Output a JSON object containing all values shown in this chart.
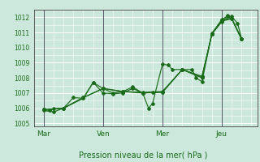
{
  "title": "",
  "xlabel": "Pression niveau de la mer( hPa )",
  "bg_color": "#cce8dc",
  "grid_color": "#ffffff",
  "line_color": "#1a6b1a",
  "marker_color": "#1a6b1a",
  "ylim": [
    1004.8,
    1012.5
  ],
  "yticks": [
    1005,
    1006,
    1007,
    1008,
    1009,
    1010,
    1011,
    1012
  ],
  "xtick_labels": [
    "Mar",
    "Ven",
    "Mer",
    "Jeu"
  ],
  "xtick_positions": [
    0,
    3,
    6,
    9
  ],
  "xlim": [
    -0.5,
    10.8
  ],
  "series": [
    [
      0.0,
      1005.9,
      0.3,
      1005.85,
      0.5,
      1005.95,
      1.0,
      1006.0,
      1.5,
      1006.7,
      2.0,
      1006.65,
      2.5,
      1007.7,
      3.0,
      1007.3,
      3.5,
      1007.0,
      4.0,
      1007.1,
      4.5,
      1007.4,
      5.0,
      1007.0,
      5.3,
      1006.0,
      5.5,
      1006.3,
      6.0,
      1008.9,
      6.3,
      1008.85,
      6.5,
      1008.55,
      7.0,
      1008.55,
      7.5,
      1008.55,
      7.7,
      1008.0,
      8.0,
      1007.75,
      8.5,
      1010.95,
      9.0,
      1011.85,
      9.3,
      1012.1,
      9.5,
      1012.05,
      9.8,
      1011.6,
      10.0,
      1010.6
    ],
    [
      0.0,
      1005.85,
      0.5,
      1005.75,
      1.0,
      1006.0,
      2.0,
      1006.65,
      2.5,
      1007.7,
      3.0,
      1007.0,
      3.5,
      1006.95,
      4.0,
      1007.0,
      4.5,
      1007.3,
      5.0,
      1007.0,
      5.5,
      1007.05,
      6.0,
      1007.05,
      7.0,
      1008.55,
      8.0,
      1008.05,
      8.5,
      1010.9,
      9.0,
      1011.7,
      9.3,
      1012.05,
      9.5,
      1011.9,
      10.0,
      1010.55
    ],
    [
      0.0,
      1005.9,
      1.0,
      1006.0,
      2.0,
      1006.7,
      3.0,
      1007.3,
      4.0,
      1007.1,
      5.0,
      1007.05,
      6.0,
      1007.1,
      7.0,
      1008.55,
      8.0,
      1008.1,
      8.5,
      1010.9,
      9.0,
      1011.8,
      9.5,
      1011.95,
      10.0,
      1010.6
    ],
    [
      0.0,
      1005.9,
      1.0,
      1006.0,
      2.0,
      1006.7,
      3.0,
      1007.3,
      4.0,
      1007.1,
      5.0,
      1007.0,
      6.0,
      1007.05,
      7.0,
      1008.55,
      8.0,
      1008.0,
      8.5,
      1010.9,
      9.0,
      1011.75,
      9.5,
      1011.9,
      10.0,
      1010.55
    ]
  ],
  "vlines": [
    0,
    3,
    6,
    9
  ],
  "vline_color": "#555566"
}
